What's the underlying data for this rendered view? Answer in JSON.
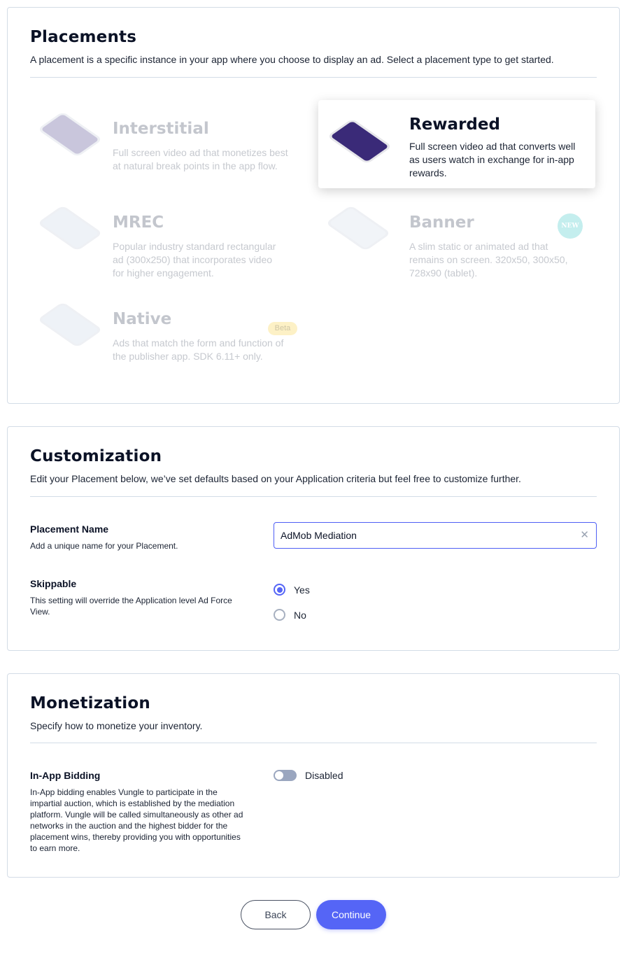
{
  "placements": {
    "title": "Placements",
    "subtitle": "A placement is a specific instance in your app where you choose to display an ad. Select a placement type to get started.",
    "items": [
      {
        "title": "Interstitial",
        "desc": "Full screen video ad that monetizes best at natural break points in the app flow.",
        "selected": false
      },
      {
        "title": "Rewarded",
        "desc": "Full screen video ad that converts well as users watch in exchange for in-app rewards.",
        "selected": true
      },
      {
        "title": "MREC",
        "desc": "Popular industry standard rectangular ad (300x250) that incorporates video for higher engagement.",
        "selected": false
      },
      {
        "title": "Banner",
        "desc": "A slim static or animated ad that remains on screen. 320x50, 300x50, 728x90 (tablet).",
        "selected": false,
        "badge": "NEW"
      },
      {
        "title": "Native",
        "desc": "Ads that match the form and function of the publisher app. SDK 6.11+ only.",
        "selected": false,
        "badge": "Beta"
      }
    ]
  },
  "customization": {
    "title": "Customization",
    "subtitle": "Edit your Placement below, we’ve set defaults based on your Application criteria but feel free to customize further.",
    "name_label": "Placement Name",
    "name_help": "Add a unique name for your Placement.",
    "name_value": "AdMob Mediation",
    "skippable_label": "Skippable",
    "skippable_help": "This setting will override the Application level Ad Force View.",
    "options": [
      "Yes",
      "No"
    ],
    "selected": "Yes"
  },
  "monetization": {
    "title": "Monetization",
    "subtitle": "Specify how to monetize your inventory.",
    "bidding_label": "In-App Bidding",
    "bidding_help": "In-App bidding enables Vungle to participate in the impartial auction, which is established by the mediation platform. Vungle will be called simultaneously as other ad networks in the auction and the highest bidder for the placement wins, thereby providing you with opportunities to earn more.",
    "bidding_state": "Disabled",
    "bidding_enabled": false
  },
  "footer": {
    "back": "Back",
    "continue": "Continue"
  },
  "colors": {
    "accent": "#5565f6",
    "border": "#d3dce6"
  }
}
